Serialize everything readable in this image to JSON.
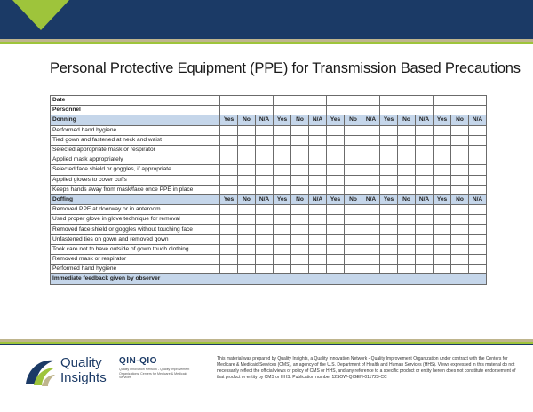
{
  "title": "Personal Protective Equipment (PPE) for Transmission Based Precautions",
  "table": {
    "date_label": "Date",
    "personnel_label": "Personnel",
    "donning_label": "Donning",
    "doffing_label": "Doffing",
    "options": [
      "Yes",
      "No",
      "N/A"
    ],
    "group_count": 5,
    "donning_items": [
      "Performed hand hygiene",
      "Tied gown and fastened at neck and waist",
      "Selected appropriate mask or respirator",
      "Applied mask appropriately",
      "Selected face shield or goggles, if appropriate",
      "Applied gloves to cover cuffs",
      "Keeps hands away from mask/face once PPE in place"
    ],
    "doffing_items": [
      "Removed PPE at doorway or in anteroom",
      "Used proper glove in glove technique for removal",
      "Removed face shield or goggles without touching face",
      "Unfastened ties on gown and removed gown",
      "Took care not to have outside of gown touch clothing",
      "Removed mask or respirator",
      "Performed hand hygiene"
    ],
    "footer_label": "Immediate feedback given by observer"
  },
  "logo": {
    "text_line1": "Quality",
    "text_line2": "Insights",
    "program": "QIN-QIO",
    "program_sub": "Quality Innovation Network - Quality Improvement Organizations. Centers for Medicare & Medicaid Services"
  },
  "disclaimer": "This material was prepared by Quality Insights, a Quality Innovation Network - Quality Improvement Organization under contract with the Centers for Medicare & Medicaid Services (CMS), an agency of the U.S. Department of Health and Human Services (HHS). Views expressed in this material do not necessarily reflect the official views or policy of CMS or HHS, and any reference to a specific product or entity herein does not constitute endorsement of that product or entity by CMS or HHS. Publication number 12SOW-QIGEN-011723-CC",
  "colors": {
    "banner": "#1b3a66",
    "accent_green": "#9ec43b",
    "accent_tan": "#bfb58d",
    "header_fill": "#c5d6ea"
  }
}
